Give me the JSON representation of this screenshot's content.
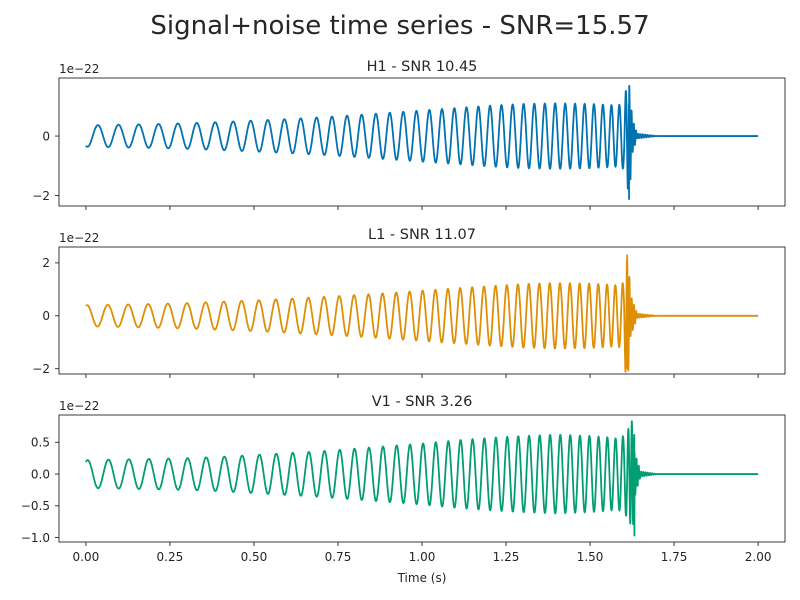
{
  "figure": {
    "title": "Signal+noise time series - SNR=15.57"
  },
  "chart_data": [
    {
      "type": "line",
      "title": "H1 - SNR 10.45",
      "offset_text": "1e−22",
      "xlabel": "",
      "ylabel": "",
      "xlim": [
        -0.08,
        2.08
      ],
      "ylim": [
        -2.35,
        1.95
      ],
      "yticks": [
        -2,
        0
      ],
      "ytick_labels": [
        "−2",
        "0"
      ],
      "xticks": [
        0,
        0.25,
        0.5,
        0.75,
        1.0,
        1.25,
        1.5,
        1.75,
        2.0
      ],
      "xtick_labels": [],
      "grid": false,
      "color": "#0173b2",
      "series": [
        {
          "x": [
            0.0,
            0.1,
            0.2,
            0.3,
            0.4,
            0.5,
            0.6,
            0.7,
            0.8,
            0.9,
            1.0,
            1.1,
            1.2,
            1.3,
            1.4,
            1.5,
            1.55,
            1.58,
            1.6,
            1.61,
            1.615,
            1.62,
            1.625,
            1.64,
            1.7,
            2.0
          ],
          "envelope": [
            0.36,
            0.38,
            0.4,
            0.43,
            0.47,
            0.52,
            0.57,
            0.63,
            0.7,
            0.78,
            0.86,
            0.94,
            1.02,
            1.08,
            1.1,
            1.08,
            1.05,
            1.03,
            1.1,
            1.75,
            1.8,
            1.5,
            0.6,
            0.08,
            0.0,
            0.0
          ],
          "frequency_hz": [
            16,
            16.5,
            17,
            17.8,
            18.6,
            19.5,
            20.5,
            21.6,
            23,
            24.5,
            26,
            27.5,
            29,
            31,
            33,
            36,
            39,
            43,
            50,
            80,
            120,
            150,
            150,
            150,
            150,
            150
          ],
          "phase": 4.2,
          "spike_x": 1.616,
          "spike_min": -2.12
        }
      ]
    },
    {
      "type": "line",
      "title": "L1 - SNR 11.07",
      "offset_text": "1e−22",
      "xlabel": "",
      "ylabel": "",
      "xlim": [
        -0.08,
        2.08
      ],
      "ylim": [
        -2.2,
        2.6
      ],
      "yticks": [
        -2,
        0,
        2
      ],
      "ytick_labels": [
        "−2",
        "0",
        "2"
      ],
      "xticks": [
        0,
        0.25,
        0.5,
        0.75,
        1.0,
        1.25,
        1.5,
        1.75,
        2.0
      ],
      "xtick_labels": [],
      "grid": false,
      "color": "#de8f05",
      "series": [
        {
          "x": [
            0.0,
            0.1,
            0.2,
            0.3,
            0.4,
            0.5,
            0.6,
            0.7,
            0.8,
            0.9,
            1.0,
            1.1,
            1.2,
            1.3,
            1.4,
            1.5,
            1.55,
            1.58,
            1.6,
            1.605,
            1.61,
            1.615,
            1.62,
            1.64,
            1.7,
            2.0
          ],
          "envelope": [
            0.4,
            0.42,
            0.45,
            0.48,
            0.53,
            0.58,
            0.64,
            0.71,
            0.78,
            0.86,
            0.95,
            1.04,
            1.12,
            1.2,
            1.24,
            1.22,
            1.18,
            1.15,
            1.25,
            2.1,
            2.35,
            2.0,
            0.8,
            0.08,
            0.0,
            0.0
          ],
          "frequency_hz": [
            16,
            16.5,
            17,
            17.8,
            18.6,
            19.5,
            20.5,
            21.6,
            23,
            24.5,
            26,
            27.5,
            29,
            31,
            33,
            36,
            39,
            43,
            50,
            80,
            120,
            150,
            150,
            150,
            150,
            150
          ],
          "phase": 1.2,
          "spike_x": 1.61,
          "spike_min": -1.98
        }
      ]
    },
    {
      "type": "line",
      "title": "V1 - SNR 3.26",
      "offset_text": "1e−22",
      "xlabel": "Time (s)",
      "ylabel": "",
      "xlim": [
        -0.08,
        2.08
      ],
      "ylim": [
        -1.07,
        0.93
      ],
      "yticks": [
        -1.0,
        -0.5,
        0.0,
        0.5
      ],
      "ytick_labels": [
        "−1.0",
        "−0.5",
        "0.0",
        "0.5"
      ],
      "xticks": [
        0,
        0.25,
        0.5,
        0.75,
        1.0,
        1.25,
        1.5,
        1.75,
        2.0
      ],
      "xtick_labels": [
        "0.00",
        "0.25",
        "0.50",
        "0.75",
        "1.00",
        "1.25",
        "1.50",
        "1.75",
        "2.00"
      ],
      "grid": false,
      "color": "#029e73",
      "series": [
        {
          "x": [
            0.0,
            0.1,
            0.2,
            0.3,
            0.4,
            0.5,
            0.6,
            0.7,
            0.8,
            0.9,
            1.0,
            1.1,
            1.2,
            1.3,
            1.4,
            1.5,
            1.55,
            1.58,
            1.6,
            1.615,
            1.625,
            1.63,
            1.635,
            1.65,
            1.7,
            2.0
          ],
          "envelope": [
            0.22,
            0.23,
            0.24,
            0.25,
            0.27,
            0.3,
            0.33,
            0.36,
            0.4,
            0.44,
            0.48,
            0.53,
            0.57,
            0.6,
            0.62,
            0.6,
            0.58,
            0.56,
            0.6,
            0.72,
            0.85,
            0.75,
            0.3,
            0.04,
            0.0,
            0.0
          ],
          "frequency_hz": [
            16,
            16.5,
            17,
            17.8,
            18.6,
            19.5,
            20.5,
            21.6,
            23,
            24.5,
            26,
            27.5,
            29,
            31,
            33,
            36,
            39,
            43,
            50,
            80,
            120,
            150,
            150,
            150,
            150,
            150
          ],
          "phase": 1.0,
          "spike_x": 1.632,
          "spike_min": -0.97
        }
      ]
    }
  ]
}
